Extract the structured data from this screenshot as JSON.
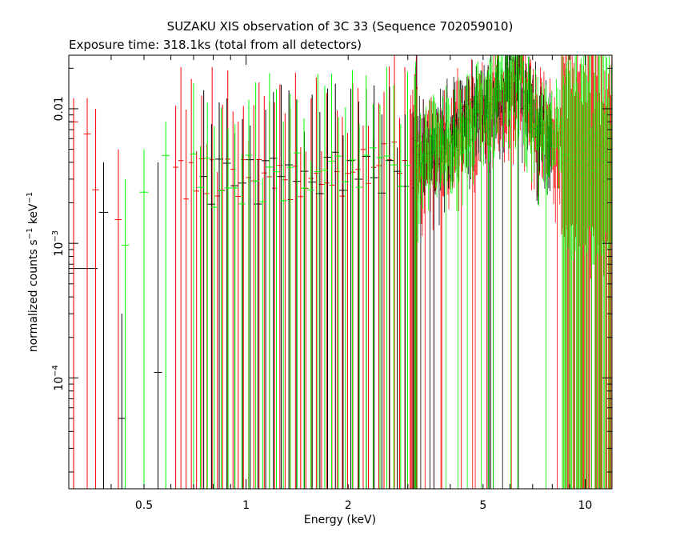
{
  "chart_data": {
    "type": "scatter",
    "title": "SUZAKU XIS observation of 3C 33 (Sequence 702059010)",
    "subtitle": "Exposure time: 318.1ks (total from all detectors)",
    "xlabel": "Energy (keV)",
    "ylabel": {
      "main": "normalized counts s",
      "sup1": "−1",
      "mid": " keV",
      "sup2": "−1"
    },
    "x_scale": "log",
    "y_scale": "log",
    "xlim": [
      0.3,
      12.0
    ],
    "ylim": [
      1.5e-05,
      0.025
    ],
    "x_ticks": [
      {
        "value": 0.5,
        "label": "0.5"
      },
      {
        "value": 1,
        "label": "1"
      },
      {
        "value": 2,
        "label": "2"
      },
      {
        "value": 5,
        "label": "5"
      },
      {
        "value": 10,
        "label": "10"
      }
    ],
    "y_ticks": [
      {
        "value": 0.0001,
        "base": "10",
        "exp": "−4"
      },
      {
        "value": 0.001,
        "base": "10",
        "exp": "−3"
      },
      {
        "value": 0.01,
        "label": "0.01"
      }
    ],
    "colors": {
      "frame": "#000000",
      "background": "#ffffff"
    },
    "series": [
      {
        "color": "#000000",
        "points": [
          {
            "x": 0.31,
            "y": 0.00065,
            "xerr": 0.055,
            "ylo": 1.5e-05,
            "yhi": 0.009
          },
          {
            "x": 0.38,
            "y": 0.0017,
            "xerr": 0.012,
            "ylo": 1.5e-05,
            "yhi": 0.004
          },
          {
            "x": 0.43,
            "y": 5e-05,
            "xerr": 0.012,
            "ylo": 1.5e-05,
            "yhi": 0.0003
          },
          {
            "x": 0.55,
            "y": 0.00011,
            "xerr": 0.015,
            "ylo": 1.5e-05,
            "yhi": 0.004
          }
        ]
      },
      {
        "color": "#ff0000",
        "points": [
          {
            "x": 0.31,
            "y": 0.008,
            "xerr": 0.01,
            "ylo": 1.5e-05,
            "yhi": 0.012
          },
          {
            "x": 0.34,
            "y": 0.0065,
            "xerr": 0.008,
            "ylo": 1.5e-05,
            "yhi": 0.012
          },
          {
            "x": 0.36,
            "y": 0.0025,
            "xerr": 0.008,
            "ylo": 1.5e-05,
            "yhi": 0.01
          },
          {
            "x": 0.42,
            "y": 0.0015,
            "xerr": 0.01,
            "ylo": 1.5e-05,
            "yhi": 0.005
          }
        ]
      },
      {
        "color": "#00ff00",
        "points": [
          {
            "x": 0.44,
            "y": 0.00097,
            "xerr": 0.012,
            "ylo": 1.5e-05,
            "yhi": 0.003
          },
          {
            "x": 0.5,
            "y": 0.0024,
            "xerr": 0.015,
            "ylo": 1.5e-05,
            "yhi": 0.005
          },
          {
            "x": 0.58,
            "y": 0.0045,
            "xerr": 0.015,
            "ylo": 1.5e-05,
            "yhi": 0.008
          }
        ]
      }
    ],
    "spectrum_model": {
      "description_only_for_rendering": false,
      "knots": [
        {
          "x": 0.3,
          "y": 0.0035
        },
        {
          "x": 1.0,
          "y": 0.003
        },
        {
          "x": 2.0,
          "y": 0.0035
        },
        {
          "x": 3.0,
          "y": 0.004
        },
        {
          "x": 4.0,
          "y": 0.006
        },
        {
          "x": 5.0,
          "y": 0.01
        },
        {
          "x": 6.0,
          "y": 0.015
        },
        {
          "x": 6.4,
          "y": 0.02
        },
        {
          "x": 7.0,
          "y": 0.008
        },
        {
          "x": 9.0,
          "y": 0.005
        },
        {
          "x": 12.0,
          "y": 0.004
        }
      ]
    }
  }
}
